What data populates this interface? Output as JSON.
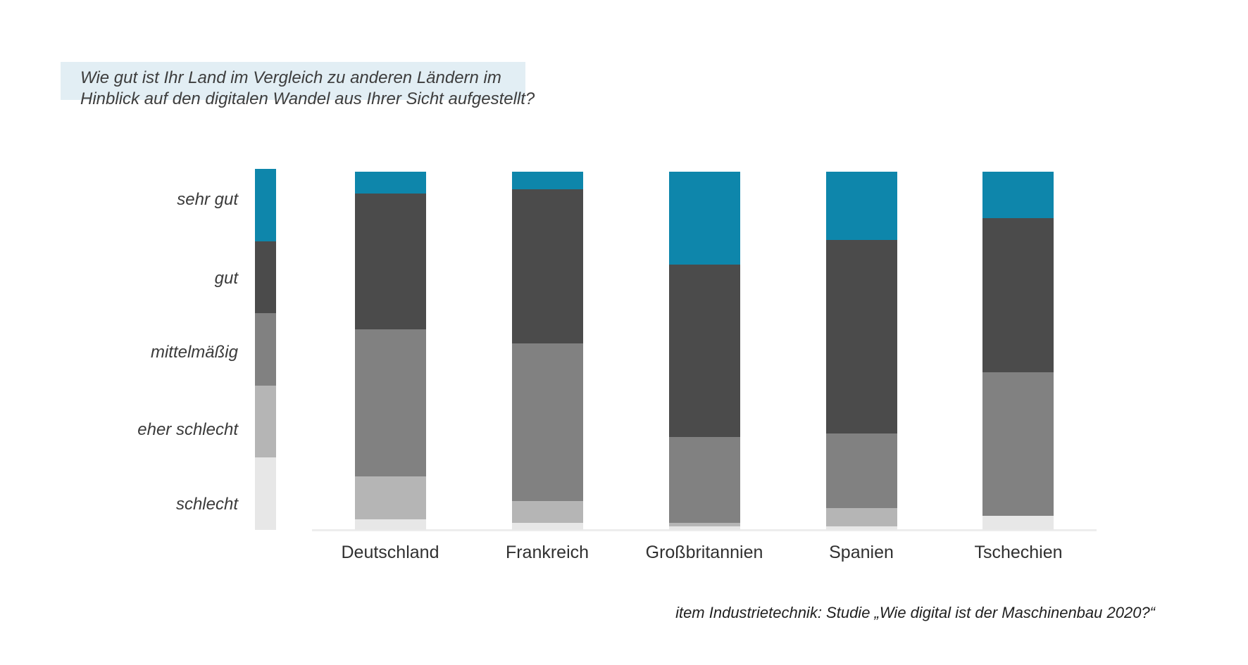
{
  "question": {
    "line1": "Wie gut ist Ihr Land im Vergleich zu anderen Ländern im",
    "line2": "Hinblick auf den digitalen Wandel aus Ihrer Sicht aufgestellt?"
  },
  "source_note": "item Industrietechnik: Studie „Wie digital ist der Maschinenbau 2020?“",
  "colors": {
    "question_highlight": "#e2eef4",
    "baseline": "#ededed",
    "sehr_gut": "#0e86ab",
    "gut": "#4b4b4b",
    "mittelmaessig": "#818181",
    "eher_schlecht": "#b5b5b5",
    "schlecht": "#e7e7e7"
  },
  "chart_data": {
    "type": "bar",
    "subtype": "stacked-vertical-100pct",
    "title": "Wie gut ist Ihr Land im Vergleich zu anderen Ländern im Hinblick auf den digitalen Wandel aus Ihrer Sicht aufgestellt?",
    "categories": [
      "Deutschland",
      "Frankreich",
      "Großbritannien",
      "Spanien",
      "Tschechien"
    ],
    "legend": [
      "sehr gut",
      "gut",
      "mittelmäßig",
      "eher schlecht",
      "schlecht"
    ],
    "legend_position": "left",
    "unit": "percent (estimated from bar segment heights)",
    "ylim": [
      0,
      100
    ],
    "grid": false,
    "series": [
      {
        "name": "sehr gut",
        "color": "#0e86ab",
        "values": [
          6,
          5,
          26,
          19,
          13
        ]
      },
      {
        "name": "gut",
        "color": "#4b4b4b",
        "values": [
          38,
          43,
          48,
          54,
          43
        ]
      },
      {
        "name": "mittelmäßig",
        "color": "#818181",
        "values": [
          41,
          44,
          24,
          21,
          40
        ]
      },
      {
        "name": "eher schlecht",
        "color": "#b5b5b5",
        "values": [
          12,
          6,
          1,
          5,
          0
        ]
      },
      {
        "name": "schlecht",
        "color": "#e7e7e7",
        "values": [
          3,
          2,
          1,
          1,
          4
        ]
      }
    ]
  }
}
